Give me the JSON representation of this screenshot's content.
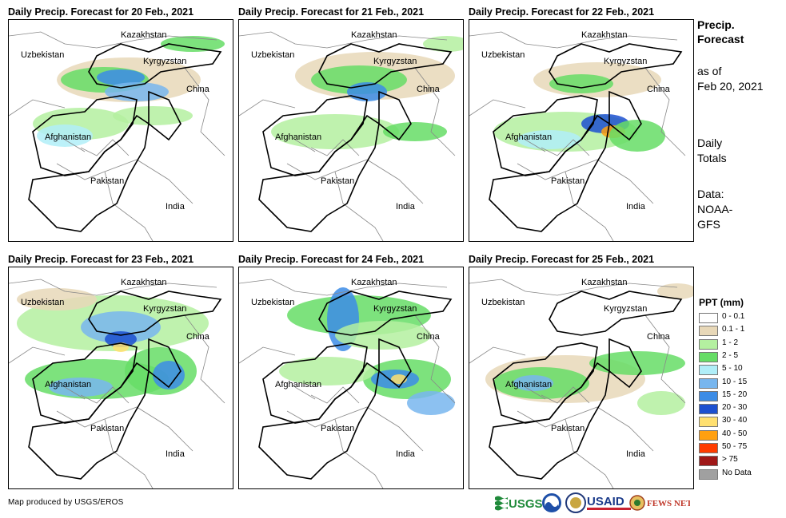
{
  "panels": [
    {
      "title": "Daily Precip. Forecast for 20 Feb., 2021",
      "day": 0
    },
    {
      "title": "Daily Precip. Forecast for 21 Feb., 2021",
      "day": 1
    },
    {
      "title": "Daily Precip. Forecast for 22 Feb., 2021",
      "day": 2
    },
    {
      "title": "Daily Precip. Forecast for 23 Feb., 2021",
      "day": 3
    },
    {
      "title": "Daily Precip. Forecast for 24 Feb., 2021",
      "day": 4
    },
    {
      "title": "Daily Precip. Forecast for 25 Feb., 2021",
      "day": 5
    }
  ],
  "map_labels": {
    "kazakhstan": "Kazakhstan",
    "uzbekistan": "Uzbekistan",
    "kyrgyzstan": "Kyrgyzstan",
    "china": "China",
    "afghanistan": "Afghanistan",
    "pakistan": "Pakistan",
    "india": "India"
  },
  "side": {
    "title_line1": "Precip.",
    "title_line2": "Forecast",
    "asof_line1": "as of",
    "asof_line2": "Feb 20, 2021",
    "totals_line1": "Daily",
    "totals_line2": "Totals",
    "data_line1": "Data:",
    "data_line2": "NOAA-",
    "data_line3": "GFS"
  },
  "legend": {
    "title": "PPT (mm)",
    "items": [
      {
        "label": "0 - 0.1",
        "color": "#ffffff"
      },
      {
        "label": "0.1 - 1",
        "color": "#e8d8b8"
      },
      {
        "label": "1 - 2",
        "color": "#b4f0a0"
      },
      {
        "label": "2 - 5",
        "color": "#66dd66"
      },
      {
        "label": "5 - 10",
        "color": "#b0eef8"
      },
      {
        "label": "10 - 15",
        "color": "#78b6ee"
      },
      {
        "label": "15 - 20",
        "color": "#3c8ce6"
      },
      {
        "label": "20 - 30",
        "color": "#1c50d0"
      },
      {
        "label": "30 - 40",
        "color": "#ffe070"
      },
      {
        "label": "40 - 50",
        "color": "#ffa010"
      },
      {
        "label": "50 - 75",
        "color": "#ff3c00"
      },
      {
        "label": "> 75",
        "color": "#a01818"
      },
      {
        "label": "No Data",
        "color": "#a0a0a0"
      }
    ]
  },
  "footer": "Map produced by USGS/EROS",
  "logos": {
    "usgs": "USGS",
    "usaid": "USAID",
    "fewsnet": "FEWS NET"
  }
}
